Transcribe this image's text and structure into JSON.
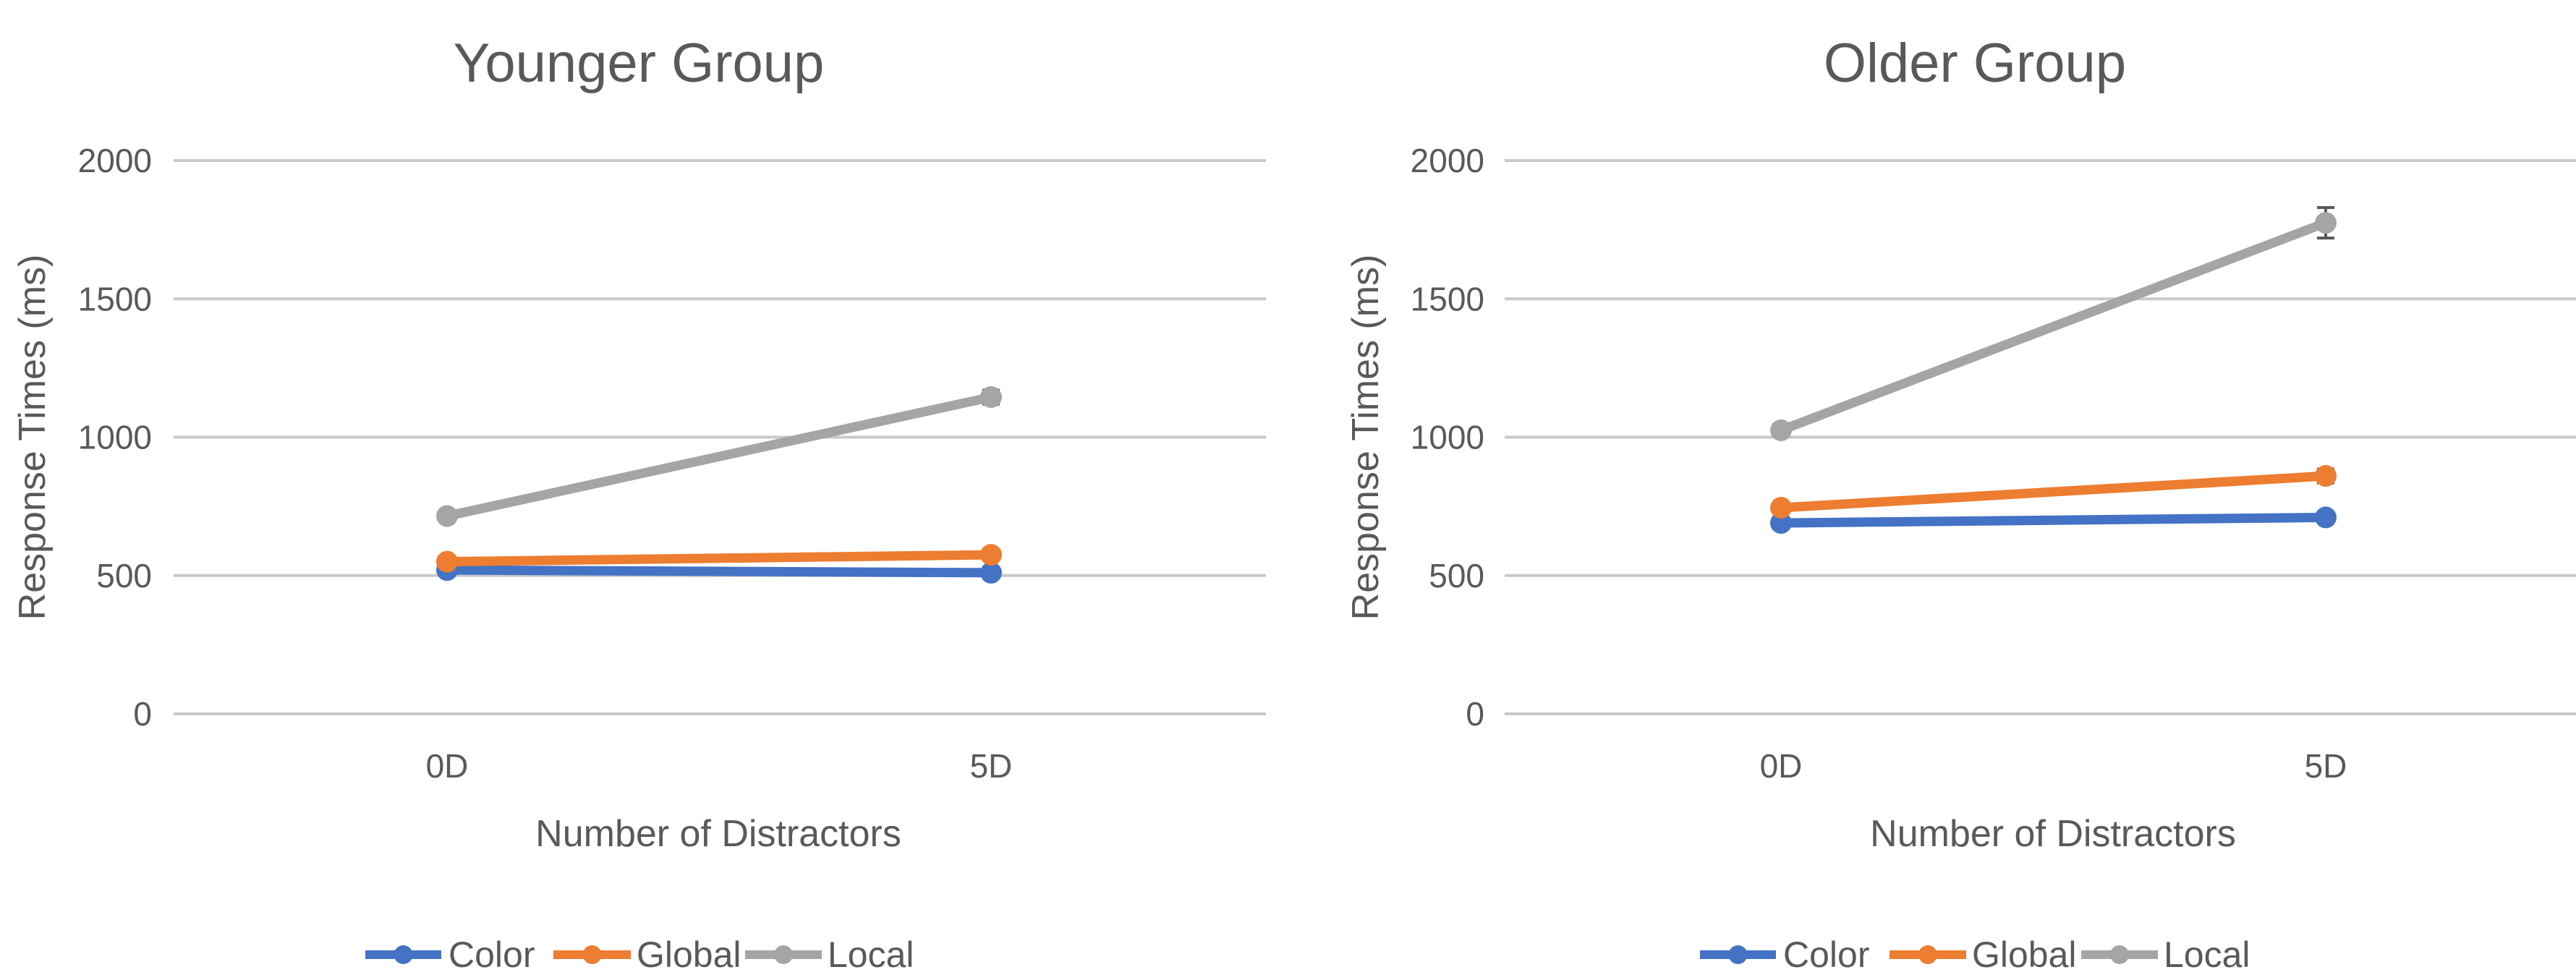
{
  "chart_data": [
    {
      "type": "line",
      "title": "Younger Group",
      "xlabel": "Number of Distractors",
      "ylabel": "Response Times (ms)",
      "categories": [
        "0D",
        "5D"
      ],
      "ylim": [
        0,
        2000
      ],
      "yticks": [
        0,
        500,
        1000,
        1500,
        2000
      ],
      "grid": true,
      "legend_position": "bottom",
      "series": [
        {
          "name": "Color",
          "color": "#4472C4",
          "values": [
            520,
            510
          ],
          "error": [
            10,
            10
          ]
        },
        {
          "name": "Global",
          "color": "#ED7D31",
          "values": [
            550,
            575
          ],
          "error": [
            10,
            12
          ]
        },
        {
          "name": "Local",
          "color": "#A5A5A5",
          "values": [
            715,
            1145
          ],
          "error": [
            15,
            25
          ]
        }
      ]
    },
    {
      "type": "line",
      "title": "Older Group",
      "xlabel": "Number of Distractors",
      "ylabel": "Response Times (ms)",
      "categories": [
        "0D",
        "5D"
      ],
      "ylim": [
        0,
        2000
      ],
      "yticks": [
        0,
        500,
        1000,
        1500,
        2000
      ],
      "grid": true,
      "legend_position": "bottom",
      "series": [
        {
          "name": "Color",
          "color": "#4472C4",
          "values": [
            690,
            710
          ],
          "error": [
            12,
            15
          ]
        },
        {
          "name": "Global",
          "color": "#ED7D31",
          "values": [
            745,
            860
          ],
          "error": [
            15,
            25
          ]
        },
        {
          "name": "Local",
          "color": "#A5A5A5",
          "values": [
            1025,
            1775
          ],
          "error": [
            20,
            55
          ]
        }
      ]
    }
  ]
}
